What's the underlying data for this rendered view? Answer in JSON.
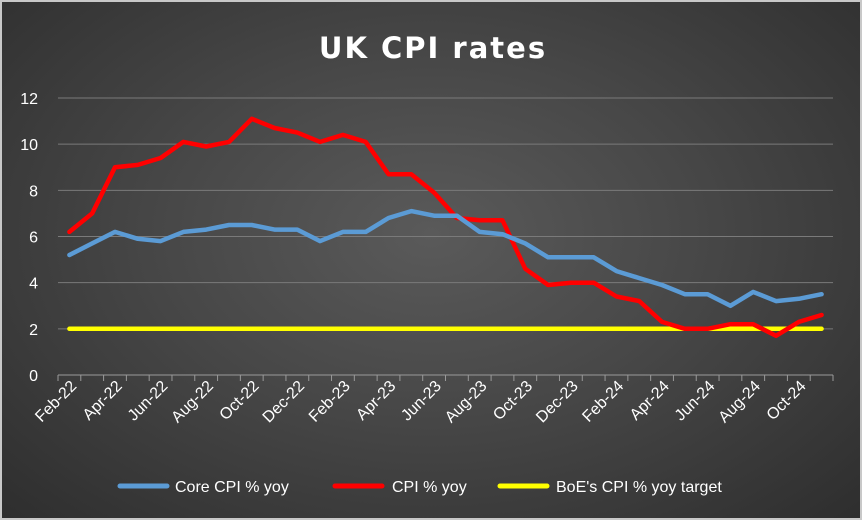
{
  "chart_data": {
    "type": "line",
    "title": "UK CPI rates",
    "xlabel": "",
    "ylabel": "",
    "ylim": [
      0,
      12
    ],
    "yticks": [
      "0",
      "2",
      "4",
      "6",
      "8",
      "10",
      "12"
    ],
    "grid": true,
    "legend_position": "bottom",
    "x": [
      "Feb-22",
      "Mar-22",
      "Apr-22",
      "May-22",
      "Jun-22",
      "Jul-22",
      "Aug-22",
      "Sep-22",
      "Oct-22",
      "Nov-22",
      "Dec-22",
      "Jan-23",
      "Feb-23",
      "Mar-23",
      "Apr-23",
      "May-23",
      "Jun-23",
      "Jul-23",
      "Aug-23",
      "Sep-23",
      "Oct-23",
      "Nov-23",
      "Dec-23",
      "Jan-24",
      "Feb-24",
      "Mar-24",
      "Apr-24",
      "May-24",
      "Jun-24",
      "Jul-24",
      "Aug-24",
      "Sep-24",
      "Oct-24",
      "Nov-24"
    ],
    "xtick_labels": [
      "Feb-22",
      "Apr-22",
      "Jun-22",
      "Aug-22",
      "Oct-22",
      "Dec-22",
      "Feb-23",
      "Apr-23",
      "Jun-23",
      "Aug-23",
      "Oct-23",
      "Dec-23",
      "Feb-24",
      "Apr-24",
      "Jun-24",
      "Aug-24",
      "Oct-24"
    ],
    "series": [
      {
        "name": "Core CPI % yoy",
        "color": "#5b9bd5",
        "values": [
          5.2,
          5.7,
          6.2,
          5.9,
          5.8,
          6.2,
          6.3,
          6.5,
          6.5,
          6.3,
          6.3,
          5.8,
          6.2,
          6.2,
          6.8,
          7.1,
          6.9,
          6.9,
          6.2,
          6.1,
          5.7,
          5.1,
          5.1,
          5.1,
          4.5,
          4.2,
          3.9,
          3.5,
          3.5,
          3.0,
          3.6,
          3.2,
          3.3,
          3.5
        ]
      },
      {
        "name": "CPI % yoy",
        "color": "#ff0000",
        "values": [
          6.2,
          7.0,
          9.0,
          9.1,
          9.4,
          10.1,
          9.9,
          10.1,
          11.1,
          10.7,
          10.5,
          10.1,
          10.4,
          10.1,
          8.7,
          8.7,
          7.9,
          6.8,
          6.7,
          6.7,
          4.6,
          3.9,
          4.0,
          4.0,
          3.4,
          3.2,
          2.3,
          2.0,
          2.0,
          2.2,
          2.2,
          1.7,
          2.3,
          2.6
        ]
      },
      {
        "name": "BoE's CPI % yoy target",
        "color": "#ffff00",
        "values": [
          2,
          2,
          2,
          2,
          2,
          2,
          2,
          2,
          2,
          2,
          2,
          2,
          2,
          2,
          2,
          2,
          2,
          2,
          2,
          2,
          2,
          2,
          2,
          2,
          2,
          2,
          2,
          2,
          2,
          2,
          2,
          2,
          2,
          2
        ]
      }
    ]
  }
}
